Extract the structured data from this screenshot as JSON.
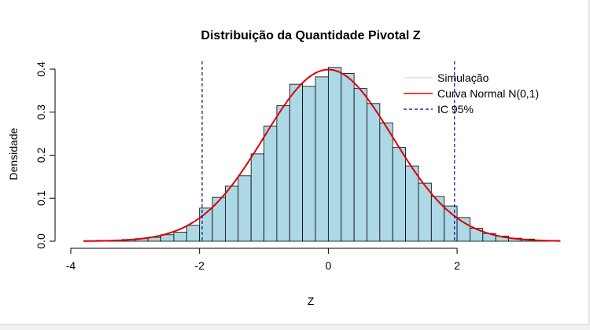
{
  "chart_data": {
    "type": "bar",
    "title": "Distribuição da Quantidade Pivotal Z",
    "xlabel": "Z",
    "ylabel": "Densidade",
    "xlim": [
      -4,
      3.6
    ],
    "ylim": [
      0,
      0.42
    ],
    "xticks": [
      -4,
      -2,
      0,
      2
    ],
    "xtick_labels": [
      "-4",
      "-2",
      "0",
      "2"
    ],
    "yticks": [
      0,
      0.1,
      0.2,
      0.3,
      0.4
    ],
    "ytick_labels": [
      "0.0",
      "0.1",
      "0.2",
      "0.3",
      "0.4"
    ],
    "grid": false,
    "legend_position": "top-right",
    "bin_width": 0.2,
    "bins_left_edges": [
      -3.8,
      -3.6,
      -3.4,
      -3.2,
      -3.0,
      -2.8,
      -2.6,
      -2.4,
      -2.2,
      -2.0,
      -1.8,
      -1.6,
      -1.4,
      -1.2,
      -1.0,
      -0.8,
      -0.6,
      -0.4,
      -0.2,
      0.0,
      0.2,
      0.4,
      0.6,
      0.8,
      1.0,
      1.2,
      1.4,
      1.6,
      1.8,
      2.0,
      2.2,
      2.4,
      2.6,
      2.8,
      3.0,
      3.2,
      3.4
    ],
    "histogram_density": [
      0.001,
      0.002,
      0.002,
      0.004,
      0.006,
      0.009,
      0.015,
      0.021,
      0.037,
      0.077,
      0.102,
      0.128,
      0.152,
      0.203,
      0.268,
      0.315,
      0.365,
      0.36,
      0.382,
      0.404,
      0.39,
      0.355,
      0.32,
      0.275,
      0.218,
      0.175,
      0.135,
      0.104,
      0.082,
      0.055,
      0.03,
      0.018,
      0.012,
      0.007,
      0.005,
      0.002,
      0.001
    ],
    "normal_curve": {
      "mean": 0,
      "sd": 1
    },
    "ci_lines": [
      -1.96,
      1.96
    ],
    "legend": [
      {
        "label": "Simulação",
        "color": "#add8e6",
        "style": "solid"
      },
      {
        "label": "Curva Normal N(0,1)",
        "color": "#ff0000",
        "style": "solid"
      },
      {
        "label": "IC 95%",
        "color": "#00008b",
        "style": "dashed"
      }
    ],
    "colors": {
      "bar_fill": "#add8e6",
      "bar_stroke": "#000000",
      "curve": "#dd0000",
      "ci": "#00008b",
      "axis": "#000000"
    }
  }
}
